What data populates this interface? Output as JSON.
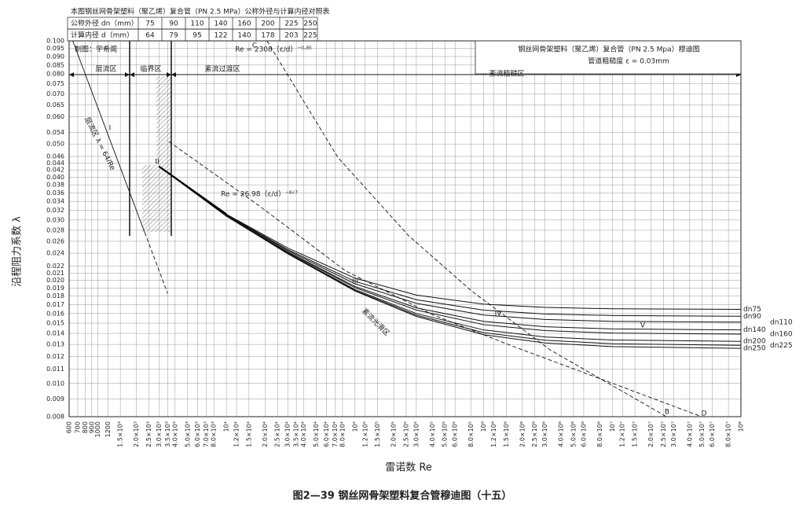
{
  "chart_data": {
    "type": "line",
    "xlog": true,
    "ylog": true,
    "grid": true,
    "color": "#111",
    "title": "钢丝网骨架塑料（聚乙烯）复合管（PN 2.5 Mpa）穆迪图",
    "subtitle": "管道粗糙度 ε = 0.03mm",
    "caption": "图2—39  钢丝网骨架塑料复合管穆迪图（十五）",
    "xlabel": "雷诺数 Re",
    "ylabel": "沿程阻力系数 λ",
    "xlim": [
      600,
      100000000
    ],
    "ylim": [
      0.008,
      0.1
    ],
    "xticks": [
      600,
      700,
      800,
      900,
      1000,
      1200,
      {
        "value": 1500,
        "label": "1.5×10³"
      },
      {
        "value": 2000,
        "label": "2.0×10³"
      },
      {
        "value": 2500,
        "label": "2.5×10³"
      },
      {
        "value": 3000,
        "label": "3.0×10³"
      },
      {
        "value": 3500,
        "label": "3.5×10³"
      },
      {
        "value": 4000,
        "label": "4.0×10³"
      },
      {
        "value": 5000,
        "label": "5.0×10³"
      },
      {
        "value": 6000,
        "label": "6.0×10³"
      },
      {
        "value": 7000,
        "label": "7.0×10³"
      },
      {
        "value": 8000,
        "label": "8.0×10³"
      },
      {
        "value": 10000,
        "label": "10⁴"
      },
      {
        "value": 12000,
        "label": "1.2×10⁴"
      },
      {
        "value": 15000,
        "label": "1.5×10⁴"
      },
      {
        "value": 20000,
        "label": "2.0×10⁴"
      },
      {
        "value": 25000,
        "label": "2.5×10⁴"
      },
      {
        "value": 30000,
        "label": "3.0×10⁴"
      },
      {
        "value": 35000,
        "label": "3.5×10⁴"
      },
      {
        "value": 40000,
        "label": "4.0×10⁴"
      },
      {
        "value": 50000,
        "label": "5.0×10⁴"
      },
      {
        "value": 60000,
        "label": "6.0×10⁴"
      },
      {
        "value": 70000,
        "label": "7.0×10⁴"
      },
      {
        "value": 80000,
        "label": "8.0×10⁴"
      },
      {
        "value": 100000,
        "label": "10⁵"
      },
      {
        "value": 120000,
        "label": "1.2×10⁵"
      },
      {
        "value": 150000,
        "label": "1.5×10⁵"
      },
      {
        "value": 200000,
        "label": "2.0×10⁵"
      },
      {
        "value": 250000,
        "label": "2.5×10⁵"
      },
      {
        "value": 300000,
        "label": "3.0×10⁵"
      },
      {
        "value": 400000,
        "label": "4.0×10⁵"
      },
      {
        "value": 500000,
        "label": "5.0×10⁵"
      },
      {
        "value": 600000,
        "label": "6.0×10⁵"
      },
      {
        "value": 800000,
        "label": "8.0×10⁵"
      },
      {
        "value": 1000000,
        "label": "10⁶"
      },
      {
        "value": 1200000,
        "label": "1.2×10⁶"
      },
      {
        "value": 1500000,
        "label": "1.5×10⁶"
      },
      {
        "value": 2000000,
        "label": "2.0×10⁶"
      },
      {
        "value": 2500000,
        "label": "2.5×10⁶"
      },
      {
        "value": 3000000,
        "label": "3.0×10⁶"
      },
      {
        "value": 4000000,
        "label": "4.0×10⁶"
      },
      {
        "value": 5000000,
        "label": "5.0×10⁶"
      },
      {
        "value": 6000000,
        "label": "6.0×10⁶"
      },
      {
        "value": 8000000,
        "label": "8.0×10⁶"
      },
      {
        "value": 10000000,
        "label": "10⁷"
      },
      {
        "value": 12000000,
        "label": "1.2×10⁷"
      },
      {
        "value": 15000000,
        "label": "1.5×10⁷"
      },
      {
        "value": 20000000,
        "label": "2.0×10⁷"
      },
      {
        "value": 25000000,
        "label": "2.5×10⁷"
      },
      {
        "value": 30000000,
        "label": "3.0×10⁷"
      },
      {
        "value": 40000000,
        "label": "4.0×10⁷"
      },
      {
        "value": 50000000,
        "label": "5.0×10⁷"
      },
      {
        "value": 60000000,
        "label": "6.0×10⁷"
      },
      {
        "value": 80000000,
        "label": "8.0×10⁷"
      },
      {
        "value": 100000000,
        "label": "10⁸"
      }
    ],
    "yticks": [
      {
        "value": 0.1,
        "label": "0.100"
      },
      0.095,
      {
        "value": 0.09,
        "label": "0.090"
      },
      0.085,
      {
        "value": 0.08,
        "label": "0.080"
      },
      0.075,
      {
        "value": 0.07,
        "label": "0.070"
      },
      0.065,
      {
        "value": 0.06,
        "label": "0.060"
      },
      0.054,
      {
        "value": 0.05,
        "label": "0.050"
      },
      0.046,
      0.044,
      0.042,
      {
        "value": 0.04,
        "label": "0.040"
      },
      0.038,
      0.036,
      0.034,
      0.032,
      {
        "value": 0.03,
        "label": "0.030"
      },
      0.028,
      0.026,
      0.024,
      0.022,
      0.021,
      {
        "value": 0.02,
        "label": "0.020"
      },
      0.019,
      0.018,
      0.017,
      0.016,
      0.015,
      0.014,
      0.013,
      0.012,
      0.011,
      {
        "value": 0.01,
        "label": "0.010"
      },
      0.009,
      0.008
    ],
    "x": [
      3000,
      10000,
      30000,
      100000,
      300000,
      1000000,
      3000000,
      10000000,
      100000000
    ],
    "series": [
      {
        "name": "dn75",
        "color": "#111",
        "values": [
          0.043,
          0.0312,
          0.02486,
          0.0203,
          0.01811,
          0.01704,
          0.01667,
          0.01652,
          0.01646
        ]
      },
      {
        "name": "dn90",
        "color": "#111",
        "values": [
          0.043,
          0.0311,
          0.0246,
          0.01986,
          0.01756,
          0.01637,
          0.01595,
          0.01579,
          0.01571
        ]
      },
      {
        "name": "dn110",
        "color": "#111",
        "values": [
          0.043,
          0.031,
          0.02443,
          0.01954,
          0.01713,
          0.01584,
          0.01537,
          0.01518,
          0.0151
        ]
      },
      {
        "name": "dn140",
        "color": "#111",
        "values": [
          0.043,
          0.0309,
          0.02423,
          0.0192,
          0.01662,
          0.01518,
          0.01464,
          0.01443,
          0.01433
        ]
      },
      {
        "name": "dn160",
        "color": "#111",
        "values": [
          0.043,
          0.0309,
          0.02414,
          0.01904,
          0.01638,
          0.01485,
          0.01427,
          0.01403,
          0.01393
        ]
      },
      {
        "name": "dn200",
        "color": "#111",
        "values": [
          0.043,
          0.0308,
          0.024,
          0.0188,
          0.016,
          0.01433,
          0.01367,
          0.01339,
          0.01327
        ]
      },
      {
        "name": "dn225",
        "color": "#111",
        "values": [
          0.043,
          0.0308,
          0.02394,
          0.01869,
          0.01583,
          0.01407,
          0.01337,
          0.01306,
          0.01292
        ]
      },
      {
        "name": "dn250",
        "color": "#111",
        "values": [
          0.043,
          0.0308,
          0.0239,
          0.01861,
          0.01569,
          0.01388,
          0.01313,
          0.01281,
          0.01266
        ]
      }
    ],
    "reference_lines": [
      {
        "x": [
          640,
          2320
        ],
        "values": [
          0.1,
          0.0276
        ],
        "dash": false
      },
      {
        "x": [
          2320,
          3500
        ],
        "values": [
          0.0276,
          0.0183
        ],
        "dash": true
      },
      {
        "x": [
          20700,
          73600,
          261000,
          805000,
          3290000,
          26400000
        ],
        "values": [
          0.1,
          0.0457,
          0.027,
          0.01863,
          0.01253,
          0.008
        ],
        "dash": true
      },
      {
        "x": [
          3580,
          18000,
          84700,
          398000,
          1630000,
          7640000,
          49500000
        ],
        "values": [
          0.0508,
          0.033,
          0.0213,
          0.0159,
          0.0129,
          0.0104,
          0.008
        ],
        "dash": true
      }
    ],
    "annotations": [
      "I",
      "II",
      "III",
      "IV",
      "V",
      "B",
      "C",
      "D",
      "层流区",
      "临界区",
      "紊流过渡区",
      "紊流粗糙区",
      "紊流光滑区",
      "层流区 λ = 64/Re",
      "Re = 2308（ε/d）⁻⁰·⁸⁵",
      "Re = 26.98（ε/d）⁻⁸ᐟ⁷",
      "制图：宇希阁"
    ],
    "table": {
      "title": "本图钢丝网骨架塑料（聚乙烯）复合管（PN 2.5 MPa）公称外径与计算内径对照表",
      "rows": [
        [
          "公称外径 dn（mm）",
          "75",
          "90",
          "110",
          "140",
          "160",
          "200",
          "225",
          "250"
        ],
        [
          "计算内径 d（mm）",
          "64",
          "79",
          "95",
          "122",
          "140",
          "178",
          "203",
          "225"
        ]
      ]
    }
  }
}
